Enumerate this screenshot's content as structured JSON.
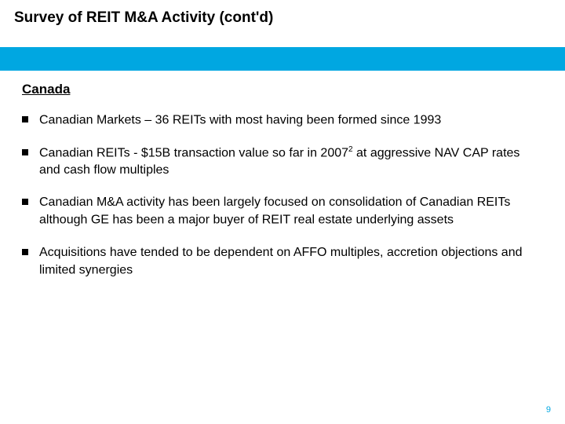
{
  "colors": {
    "title_bg": "#ffffff",
    "title_text": "#000000",
    "divider_bg": "#00a7e1",
    "body_text": "#000000",
    "bullet_square": "#000000",
    "page_num_color": "#00a7e1"
  },
  "title": "Survey of REIT M&A Activity (cont'd)",
  "section_heading": "Canada",
  "bullets": [
    {
      "text_before": "Canadian Markets – 36 REITs  with most having been formed since 1993",
      "sup": "",
      "text_after": ""
    },
    {
      "text_before": "Canadian REITs - $15B transaction value so far in 2007",
      "sup": "2",
      "text_after": " at aggressive NAV CAP rates and cash flow multiples"
    },
    {
      "text_before": "Canadian M&A activity has been largely focused on consolidation of Canadian REITs although GE has been a major buyer of REIT real estate underlying assets",
      "sup": "",
      "text_after": ""
    },
    {
      "text_before": "Acquisitions have tended to be dependent on AFFO multiples, accretion objections and limited synergies",
      "sup": "",
      "text_after": ""
    }
  ],
  "page_number": "9"
}
